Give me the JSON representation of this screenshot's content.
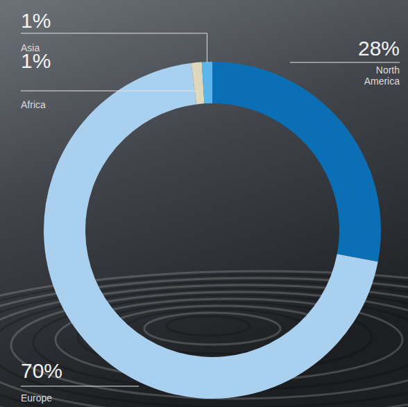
{
  "chart_data": {
    "type": "donut",
    "categories": [
      "North America",
      "Europe",
      "Africa",
      "Asia"
    ],
    "values": [
      28,
      70,
      1,
      1
    ],
    "value_labels": [
      "28%",
      "70%",
      "1%",
      "1%"
    ],
    "colors": [
      "#0a6fb5",
      "#a9d0ef",
      "#ddd7bd",
      "#5cb6ea"
    ],
    "data_labels": true
  }
}
